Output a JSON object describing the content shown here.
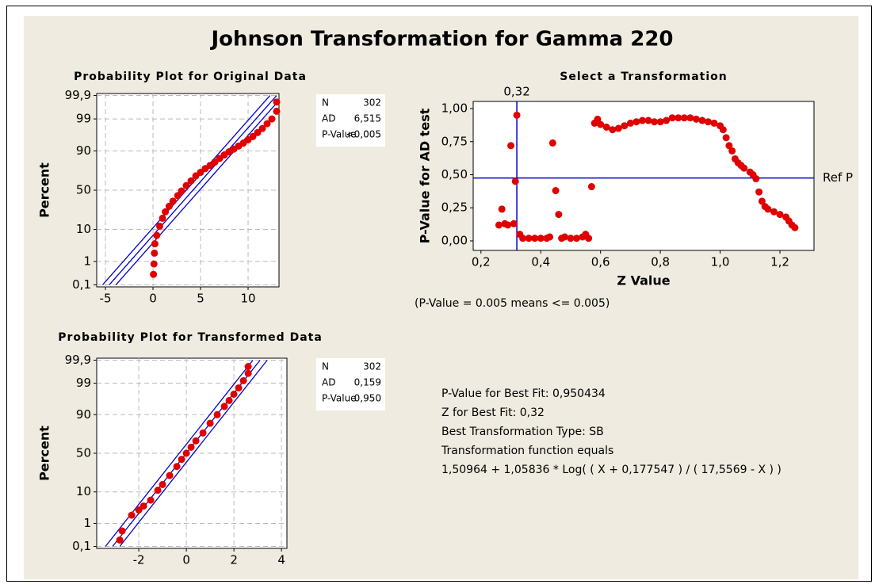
{
  "title": "Johnson Transformation for Gamma 220",
  "note": "(P-Value = 0.005 means <= 0.005)",
  "best_fit": [
    "P-Value for Best Fit: 0,950434",
    "Z for Best Fit: 0,32",
    "Best Transformation Type: SB",
    "Transformation function equals",
    "1,50964 + 1,05836 * Log( ( X + 0,177547 ) / ( 17,5569 - X ) )"
  ],
  "chart_data": [
    {
      "type": "probability",
      "title": "Probability Plot for Original Data",
      "ylabel": "Percent",
      "xlim": [
        -5.92,
        13.25
      ],
      "xticks": [
        -5,
        0,
        5,
        10
      ],
      "ylim": [
        0.08,
        99.92
      ],
      "yticks": [
        {
          "value": 0.1,
          "label": "0,1"
        },
        1,
        10,
        50,
        90,
        99,
        {
          "value": 99.9,
          "label": "99,9"
        }
      ],
      "grid": true,
      "stats": [
        [
          "N",
          "302"
        ],
        [
          "AD",
          "6,515"
        ],
        [
          "P-Value",
          "<0,005"
        ]
      ],
      "lines": [
        {
          "color": "#0000cc",
          "x": [
            -4.6,
            13
          ],
          "y": [
            0.1,
            99.9
          ]
        },
        {
          "color": "#0000cc",
          "x": [
            -5.3,
            12.3
          ],
          "y": [
            0.1,
            99.9
          ]
        },
        {
          "color": "#0000cc",
          "x": [
            -3.9,
            13.7
          ],
          "y": [
            0.1,
            99.9
          ]
        }
      ],
      "series": [
        {
          "color": "#e00000",
          "x": [
            0.05,
            0.1,
            0.15,
            0.2,
            0.4,
            0.7,
            1,
            1.3,
            1.7,
            2.1,
            2.6,
            3,
            3.5,
            4,
            4.5,
            5,
            5.5,
            6,
            6.5,
            7,
            7.5,
            8,
            8.5,
            9,
            9.5,
            10,
            10.5,
            11,
            11.5,
            12,
            12.5,
            13,
            13
          ],
          "y": [
            0.3,
            0.8,
            2,
            4,
            7,
            12,
            18,
            24,
            30,
            36,
            43,
            49,
            56,
            62,
            68,
            72,
            76,
            79,
            82,
            85,
            87.5,
            89.5,
            91,
            92.5,
            93.8,
            95,
            96,
            97,
            97.8,
            98.5,
            99,
            99.5,
            99.8
          ]
        }
      ]
    },
    {
      "type": "scatter",
      "title": "Select a Transformation",
      "xlabel": "Z Value",
      "ylabel": "P-Value for AD test",
      "xlim": [
        0.174,
        1.314
      ],
      "xticks": [
        {
          "value": 0.2,
          "label": "0,2"
        },
        {
          "value": 0.4,
          "label": "0,4"
        },
        {
          "value": 0.6,
          "label": "0,6"
        },
        {
          "value": 0.8,
          "label": "0,8"
        },
        {
          "value": 1.0,
          "label": "1,0"
        },
        {
          "value": 1.2,
          "label": "1,2"
        }
      ],
      "ylim": [
        -0.072,
        1.054
      ],
      "yticks": [
        {
          "value": 0,
          "label": "0,00"
        },
        {
          "value": 0.25,
          "label": "0,25"
        },
        {
          "value": 0.5,
          "label": "0,50"
        },
        {
          "value": 0.75,
          "label": "0,75"
        },
        {
          "value": 1,
          "label": "1,00"
        }
      ],
      "reference_lines": [
        {
          "axis": "x",
          "value": 0.32,
          "label": "0,32",
          "color": "#0000cc"
        },
        {
          "axis": "y",
          "value": 0.475,
          "label": "Ref P",
          "color": "#0000cc"
        }
      ],
      "series": [
        {
          "color": "#e00000",
          "x": [
            0.26,
            0.27,
            0.28,
            0.29,
            0.3,
            0.31,
            0.315,
            0.32,
            0.33,
            0.34,
            0.36,
            0.38,
            0.4,
            0.42,
            0.43,
            0.44,
            0.45,
            0.46,
            0.47,
            0.48,
            0.5,
            0.52,
            0.54,
            0.55,
            0.56,
            0.57,
            0.58,
            0.59,
            0.6,
            0.62,
            0.64,
            0.66,
            0.68,
            0.7,
            0.72,
            0.74,
            0.76,
            0.78,
            0.8,
            0.82,
            0.84,
            0.86,
            0.88,
            0.9,
            0.92,
            0.94,
            0.96,
            0.98,
            1.0,
            1.01,
            1.02,
            1.03,
            1.04,
            1.05,
            1.06,
            1.07,
            1.08,
            1.1,
            1.11,
            1.12,
            1.13,
            1.14,
            1.15,
            1.16,
            1.18,
            1.2,
            1.22,
            1.23,
            1.24,
            1.25
          ],
          "y": [
            0.12,
            0.24,
            0.13,
            0.12,
            0.72,
            0.13,
            0.45,
            0.95,
            0.05,
            0.02,
            0.02,
            0.02,
            0.02,
            0.02,
            0.03,
            0.74,
            0.38,
            0.2,
            0.02,
            0.03,
            0.02,
            0.02,
            0.03,
            0.05,
            0.02,
            0.41,
            0.89,
            0.92,
            0.88,
            0.86,
            0.84,
            0.85,
            0.87,
            0.89,
            0.9,
            0.91,
            0.91,
            0.9,
            0.9,
            0.91,
            0.93,
            0.93,
            0.93,
            0.93,
            0.92,
            0.91,
            0.9,
            0.89,
            0.87,
            0.84,
            0.78,
            0.72,
            0.68,
            0.62,
            0.59,
            0.57,
            0.55,
            0.52,
            0.5,
            0.47,
            0.37,
            0.3,
            0.26,
            0.24,
            0.22,
            0.2,
            0.18,
            0.15,
            0.12,
            0.1
          ]
        }
      ]
    },
    {
      "type": "probability",
      "title": "Probability Plot for Transformed Data",
      "ylabel": "Percent",
      "xlim": [
        -3.77,
        4.23
      ],
      "xticks": [
        -2,
        0,
        2,
        4
      ],
      "ylim": [
        0.08,
        99.92
      ],
      "yticks": [
        {
          "value": 0.1,
          "label": "0,1"
        },
        1,
        10,
        50,
        90,
        99,
        {
          "value": 99.9,
          "label": "99,9"
        }
      ],
      "grid": true,
      "stats": [
        [
          "N",
          "302"
        ],
        [
          "AD",
          "0,159"
        ],
        [
          "P-Value",
          "0,950"
        ]
      ],
      "lines": [
        {
          "color": "#0000cc",
          "x": [
            -3.1,
            3.1
          ],
          "y": [
            0.1,
            99.9
          ]
        },
        {
          "color": "#0000cc",
          "x": [
            -3.4,
            2.8
          ],
          "y": [
            0.1,
            99.9
          ]
        },
        {
          "color": "#0000cc",
          "x": [
            -2.8,
            3.4
          ],
          "y": [
            0.1,
            99.9
          ]
        }
      ],
      "series": [
        {
          "color": "#e00000",
          "x": [
            -2.8,
            -2.7,
            -2.3,
            -2,
            -1.8,
            -1.5,
            -1.2,
            -1,
            -0.7,
            -0.4,
            -0.2,
            0,
            0.2,
            0.4,
            0.7,
            1,
            1.3,
            1.6,
            1.8,
            2,
            2.2,
            2.4,
            2.6,
            2.6
          ],
          "y": [
            0.2,
            0.5,
            2,
            3,
            4,
            6,
            11,
            15,
            23,
            33,
            42,
            50,
            58,
            66,
            75,
            84,
            90,
            94,
            96,
            97.5,
            98.5,
            99.2,
            99.6,
            99.8
          ]
        }
      ]
    }
  ]
}
